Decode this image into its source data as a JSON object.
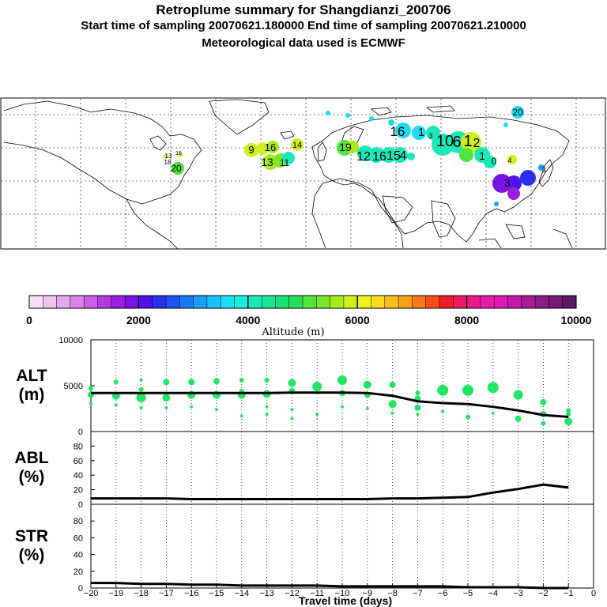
{
  "header": {
    "title": "Retroplume summary for Shangdianzi_200706",
    "sampling_line": "Start time of sampling 20070621.180000     End time of sampling 20070621.210000",
    "met_line": "Meteorological data used is ECMWF"
  },
  "colorbar": {
    "caption": "Altitude (m)",
    "ticks": [
      "0",
      "2000",
      "4000",
      "6000",
      "8000",
      "10000"
    ],
    "colors": [
      "#f7e1f7",
      "#efc4f2",
      "#e6a7ef",
      "#db84ec",
      "#cd5ee8",
      "#b43ae3",
      "#9a1fe0",
      "#7a13e3",
      "#5010e8",
      "#2830ef",
      "#1a55f2",
      "#1a7af4",
      "#1a9ef6",
      "#1ac0f8",
      "#1adcf4",
      "#1aecdc",
      "#1ae8b8",
      "#1ae498",
      "#1ae078",
      "#28e05c",
      "#50e43c",
      "#7ae828",
      "#a6ec1a",
      "#d0f01a",
      "#f0f01a",
      "#f8dc1a",
      "#f8c01a",
      "#f8a01a",
      "#f8781a",
      "#f84c1a",
      "#f01a28",
      "#f01a64",
      "#ec1a8c",
      "#e81aa8",
      "#dc1ab4",
      "#c41aa8",
      "#a81a98",
      "#8c1a88",
      "#721a78",
      "#5a1a66"
    ]
  },
  "map": {
    "labels": [
      "20",
      "16",
      "1",
      "10",
      "6",
      "1",
      "2",
      "1",
      "0",
      "4",
      "3",
      "9",
      "16",
      "14",
      "13",
      "11",
      "19",
      "12",
      "16",
      "15",
      "4",
      "3",
      "13",
      "16",
      "18",
      "20",
      "3"
    ]
  },
  "chart_data": [
    {
      "type": "scatter+line",
      "panel": "ALT",
      "ylabel": "ALT\n(m)",
      "ylim": [
        0,
        10000
      ],
      "yticks": [
        "0",
        "5000",
        "10000"
      ],
      "xlim": [
        -20,
        0
      ],
      "x": [
        -20,
        -19,
        -18,
        -17,
        -16,
        -15,
        -14,
        -13,
        -12,
        -11,
        -10,
        -9,
        -8,
        -7,
        -6,
        -5,
        -4,
        -3,
        -2,
        -1
      ],
      "median_line": [
        4200,
        4200,
        4200,
        4200,
        4200,
        4200,
        4200,
        4200,
        4250,
        4250,
        4250,
        4200,
        3900,
        3300,
        3100,
        3000,
        2700,
        2300,
        1800,
        1600
      ],
      "clusters": [
        {
          "x": -20,
          "points": [
            [
              4700,
              3
            ],
            [
              4000,
              4
            ],
            [
              3100,
              2
            ]
          ]
        },
        {
          "x": -19,
          "points": [
            [
              5400,
              3
            ],
            [
              3900,
              5
            ],
            [
              2900,
              2
            ]
          ]
        },
        {
          "x": -18,
          "points": [
            [
              5600,
              2
            ],
            [
              4600,
              3
            ],
            [
              3700,
              6
            ],
            [
              2600,
              2
            ]
          ]
        },
        {
          "x": -17,
          "points": [
            [
              5400,
              4
            ],
            [
              3700,
              5
            ],
            [
              2600,
              2
            ]
          ]
        },
        {
          "x": -16,
          "points": [
            [
              5400,
              4
            ],
            [
              4000,
              5
            ],
            [
              2700,
              2
            ]
          ]
        },
        {
          "x": -15,
          "points": [
            [
              5500,
              4
            ],
            [
              4000,
              5
            ],
            [
              2400,
              2
            ]
          ]
        },
        {
          "x": -14,
          "points": [
            [
              5600,
              3
            ],
            [
              4400,
              3
            ],
            [
              4000,
              5
            ],
            [
              1700,
              2
            ]
          ]
        },
        {
          "x": -13,
          "points": [
            [
              5600,
              3
            ],
            [
              4100,
              5
            ],
            [
              2700,
              2
            ],
            [
              1900,
              2
            ]
          ]
        },
        {
          "x": -12,
          "points": [
            [
              5300,
              5
            ],
            [
              4400,
              4
            ],
            [
              2400,
              2
            ],
            [
              1400,
              2
            ]
          ]
        },
        {
          "x": -11,
          "points": [
            [
              4900,
              6
            ],
            [
              1900,
              2
            ],
            [
              1400,
              1
            ]
          ]
        },
        {
          "x": -10,
          "points": [
            [
              5600,
              6
            ],
            [
              4200,
              4
            ],
            [
              2700,
              2
            ],
            [
              2000,
              1
            ],
            [
              1400,
              1
            ]
          ]
        },
        {
          "x": -9,
          "points": [
            [
              5100,
              5
            ],
            [
              4000,
              4
            ],
            [
              2500,
              2
            ],
            [
              1400,
              1
            ]
          ]
        },
        {
          "x": -8,
          "points": [
            [
              5100,
              4
            ],
            [
              3000,
              5
            ],
            [
              2000,
              2
            ]
          ]
        },
        {
          "x": -7,
          "points": [
            [
              4200,
              3
            ],
            [
              3600,
              4
            ],
            [
              2600,
              4
            ],
            [
              1900,
              2
            ]
          ]
        },
        {
          "x": -6,
          "points": [
            [
              4500,
              7
            ],
            [
              2200,
              2
            ]
          ]
        },
        {
          "x": -5,
          "points": [
            [
              4500,
              7
            ],
            [
              1600,
              3
            ]
          ]
        },
        {
          "x": -4,
          "points": [
            [
              4800,
              7
            ],
            [
              2000,
              2
            ]
          ]
        },
        {
          "x": -3,
          "points": [
            [
              4000,
              6
            ],
            [
              1400,
              4
            ]
          ]
        },
        {
          "x": -2,
          "points": [
            [
              3200,
              4
            ],
            [
              1900,
              4
            ],
            [
              900,
              3
            ]
          ]
        },
        {
          "x": -1,
          "points": [
            [
              2300,
              3
            ],
            [
              1900,
              3
            ],
            [
              1100,
              5
            ]
          ]
        }
      ]
    },
    {
      "type": "line",
      "panel": "ABL",
      "ylabel": "ABL\n(%)",
      "ylim": [
        0,
        100
      ],
      "yticks": [
        "0",
        "20",
        "40",
        "60",
        "80"
      ],
      "x": [
        -20,
        -19,
        -18,
        -17,
        -16,
        -15,
        -14,
        -13,
        -12,
        -11,
        -10,
        -9,
        -8,
        -7,
        -6,
        -5,
        -4,
        -3,
        -2,
        -1
      ],
      "values": [
        8,
        8,
        8,
        8,
        7,
        7,
        7,
        7,
        7,
        7,
        7,
        7,
        8,
        8,
        9,
        10,
        16,
        21,
        27,
        23
      ]
    },
    {
      "type": "line",
      "panel": "STR",
      "ylabel": "STR\n(%)",
      "ylim": [
        0,
        100
      ],
      "yticks": [
        "0",
        "20",
        "40",
        "60",
        "80"
      ],
      "x": [
        -20,
        -19,
        -18,
        -17,
        -16,
        -15,
        -14,
        -13,
        -12,
        -11,
        -10,
        -9,
        -8,
        -7,
        -6,
        -5,
        -4,
        -3,
        -2,
        -1
      ],
      "values": [
        6,
        6,
        5,
        5,
        4,
        4,
        3,
        3,
        3,
        3,
        2,
        2,
        2,
        2,
        2,
        1,
        1,
        1,
        0,
        0
      ]
    }
  ],
  "x_axis": {
    "label": "Travel time (days)",
    "ticks": [
      "−20",
      "−19",
      "−18",
      "−17",
      "−16",
      "−15",
      "−14",
      "−13",
      "−12",
      "−11",
      "−10",
      "−9",
      "−8",
      "−7",
      "−6",
      "−5",
      "−4",
      "−3",
      "−2",
      "−1",
      "0"
    ]
  }
}
